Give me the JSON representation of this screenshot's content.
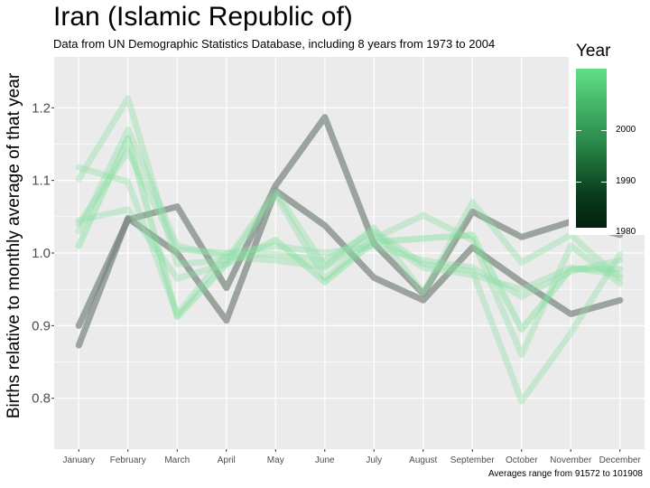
{
  "header": {
    "title": "Iran (Islamic Republic of)",
    "subtitle": "Data from UN Demographic Statistics Database, including 8 years from 1973 to 2004",
    "caption": "Averages range from 91572 to 101908"
  },
  "legend": {
    "title": "Year",
    "ticks": [
      "2000",
      "1990",
      "1980"
    ],
    "gradient_colors": [
      "#5fe085",
      "#032110"
    ]
  },
  "chart_data": {
    "type": "line",
    "title": "Iran (Islamic Republic of)",
    "subtitle": "Data from UN Demographic Statistics Database, including 8 years from 1973 to 2004",
    "ylabel": "Births relative to monthly average of that year",
    "xlabel": "",
    "ylim": [
      0.73,
      1.27
    ],
    "yticks": [
      0.8,
      0.9,
      1.0,
      1.1,
      1.2
    ],
    "ytick_labels": [
      "0.8",
      "0.9",
      "1.0",
      "1.1",
      "1.2"
    ],
    "categories": [
      "January",
      "February",
      "March",
      "April",
      "May",
      "June",
      "July",
      "August",
      "September",
      "October",
      "November",
      "December"
    ],
    "grid": true,
    "legend_position": "right",
    "series": [
      {
        "color": "#7b877f",
        "values": [
          0.9,
          1.046,
          1.064,
          0.952,
          1.093,
          1.187,
          1.013,
          0.944,
          1.057,
          1.022,
          1.043,
          1.025
        ]
      },
      {
        "color": "#7b877f",
        "values": [
          0.873,
          1.048,
          1.0,
          0.907,
          1.086,
          1.038,
          0.966,
          0.935,
          1.008,
          0.96,
          0.916,
          0.935
        ]
      },
      {
        "color": "#8fe0a5",
        "values": [
          1.102,
          1.213,
          0.985,
          0.99,
          1.085,
          0.982,
          1.035,
          0.945,
          1.07,
          0.987,
          1.025,
          0.965
        ]
      },
      {
        "color": "#8fe0a5",
        "values": [
          1.045,
          1.06,
          0.965,
          0.985,
          1.08,
          0.965,
          1.02,
          1.052,
          1.018,
          0.86,
          1.01,
          0.958
        ]
      },
      {
        "color": "#8fe0a5",
        "values": [
          1.118,
          1.098,
          0.915,
          1.0,
          0.998,
          0.99,
          1.03,
          0.985,
          0.975,
          0.796,
          0.89,
          0.998
        ]
      },
      {
        "color": "#6fe08f",
        "values": [
          1.01,
          1.158,
          0.912,
          0.985,
          1.018,
          0.96,
          1.015,
          1.02,
          1.025,
          0.895,
          0.978,
          0.978
        ]
      },
      {
        "color": "#8fe0a5",
        "values": [
          1.03,
          1.17,
          1.01,
          0.995,
          0.99,
          0.98,
          1.025,
          0.98,
          0.97,
          0.95,
          0.98,
          0.97
        ]
      },
      {
        "color": "#8fe0a5",
        "values": [
          1.04,
          1.14,
          1.005,
          1.0,
          1.01,
          1.0,
          1.01,
          0.99,
          0.98,
          0.94,
          0.975,
          0.99
        ]
      }
    ]
  }
}
